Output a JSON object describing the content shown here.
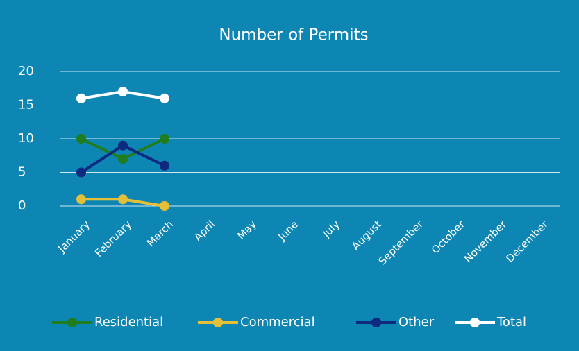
{
  "chart_data": {
    "type": "line",
    "title": "Number of Permits",
    "categories": [
      "January",
      "February",
      "March",
      "April",
      "May",
      "June",
      "July",
      "August",
      "September",
      "October",
      "November",
      "December"
    ],
    "series": [
      {
        "name": "Residential",
        "color": "#1e7d1e",
        "values": [
          10,
          7,
          10,
          null,
          null,
          null,
          null,
          null,
          null,
          null,
          null,
          null
        ]
      },
      {
        "name": "Commercial",
        "color": "#e3c037",
        "values": [
          1,
          1,
          0,
          null,
          null,
          null,
          null,
          null,
          null,
          null,
          null,
          null
        ]
      },
      {
        "name": "Other",
        "color": "#0d2a80",
        "values": [
          5,
          9,
          6,
          null,
          null,
          null,
          null,
          null,
          null,
          null,
          null,
          null
        ]
      },
      {
        "name": "Total",
        "color": "#ffffff",
        "values": [
          16,
          17,
          16,
          null,
          null,
          null,
          null,
          null,
          null,
          null,
          null,
          null
        ]
      }
    ],
    "ylim": [
      0,
      20
    ],
    "yticks": [
      0,
      5,
      10,
      15,
      20
    ],
    "grid": true,
    "legend": "bottom"
  }
}
